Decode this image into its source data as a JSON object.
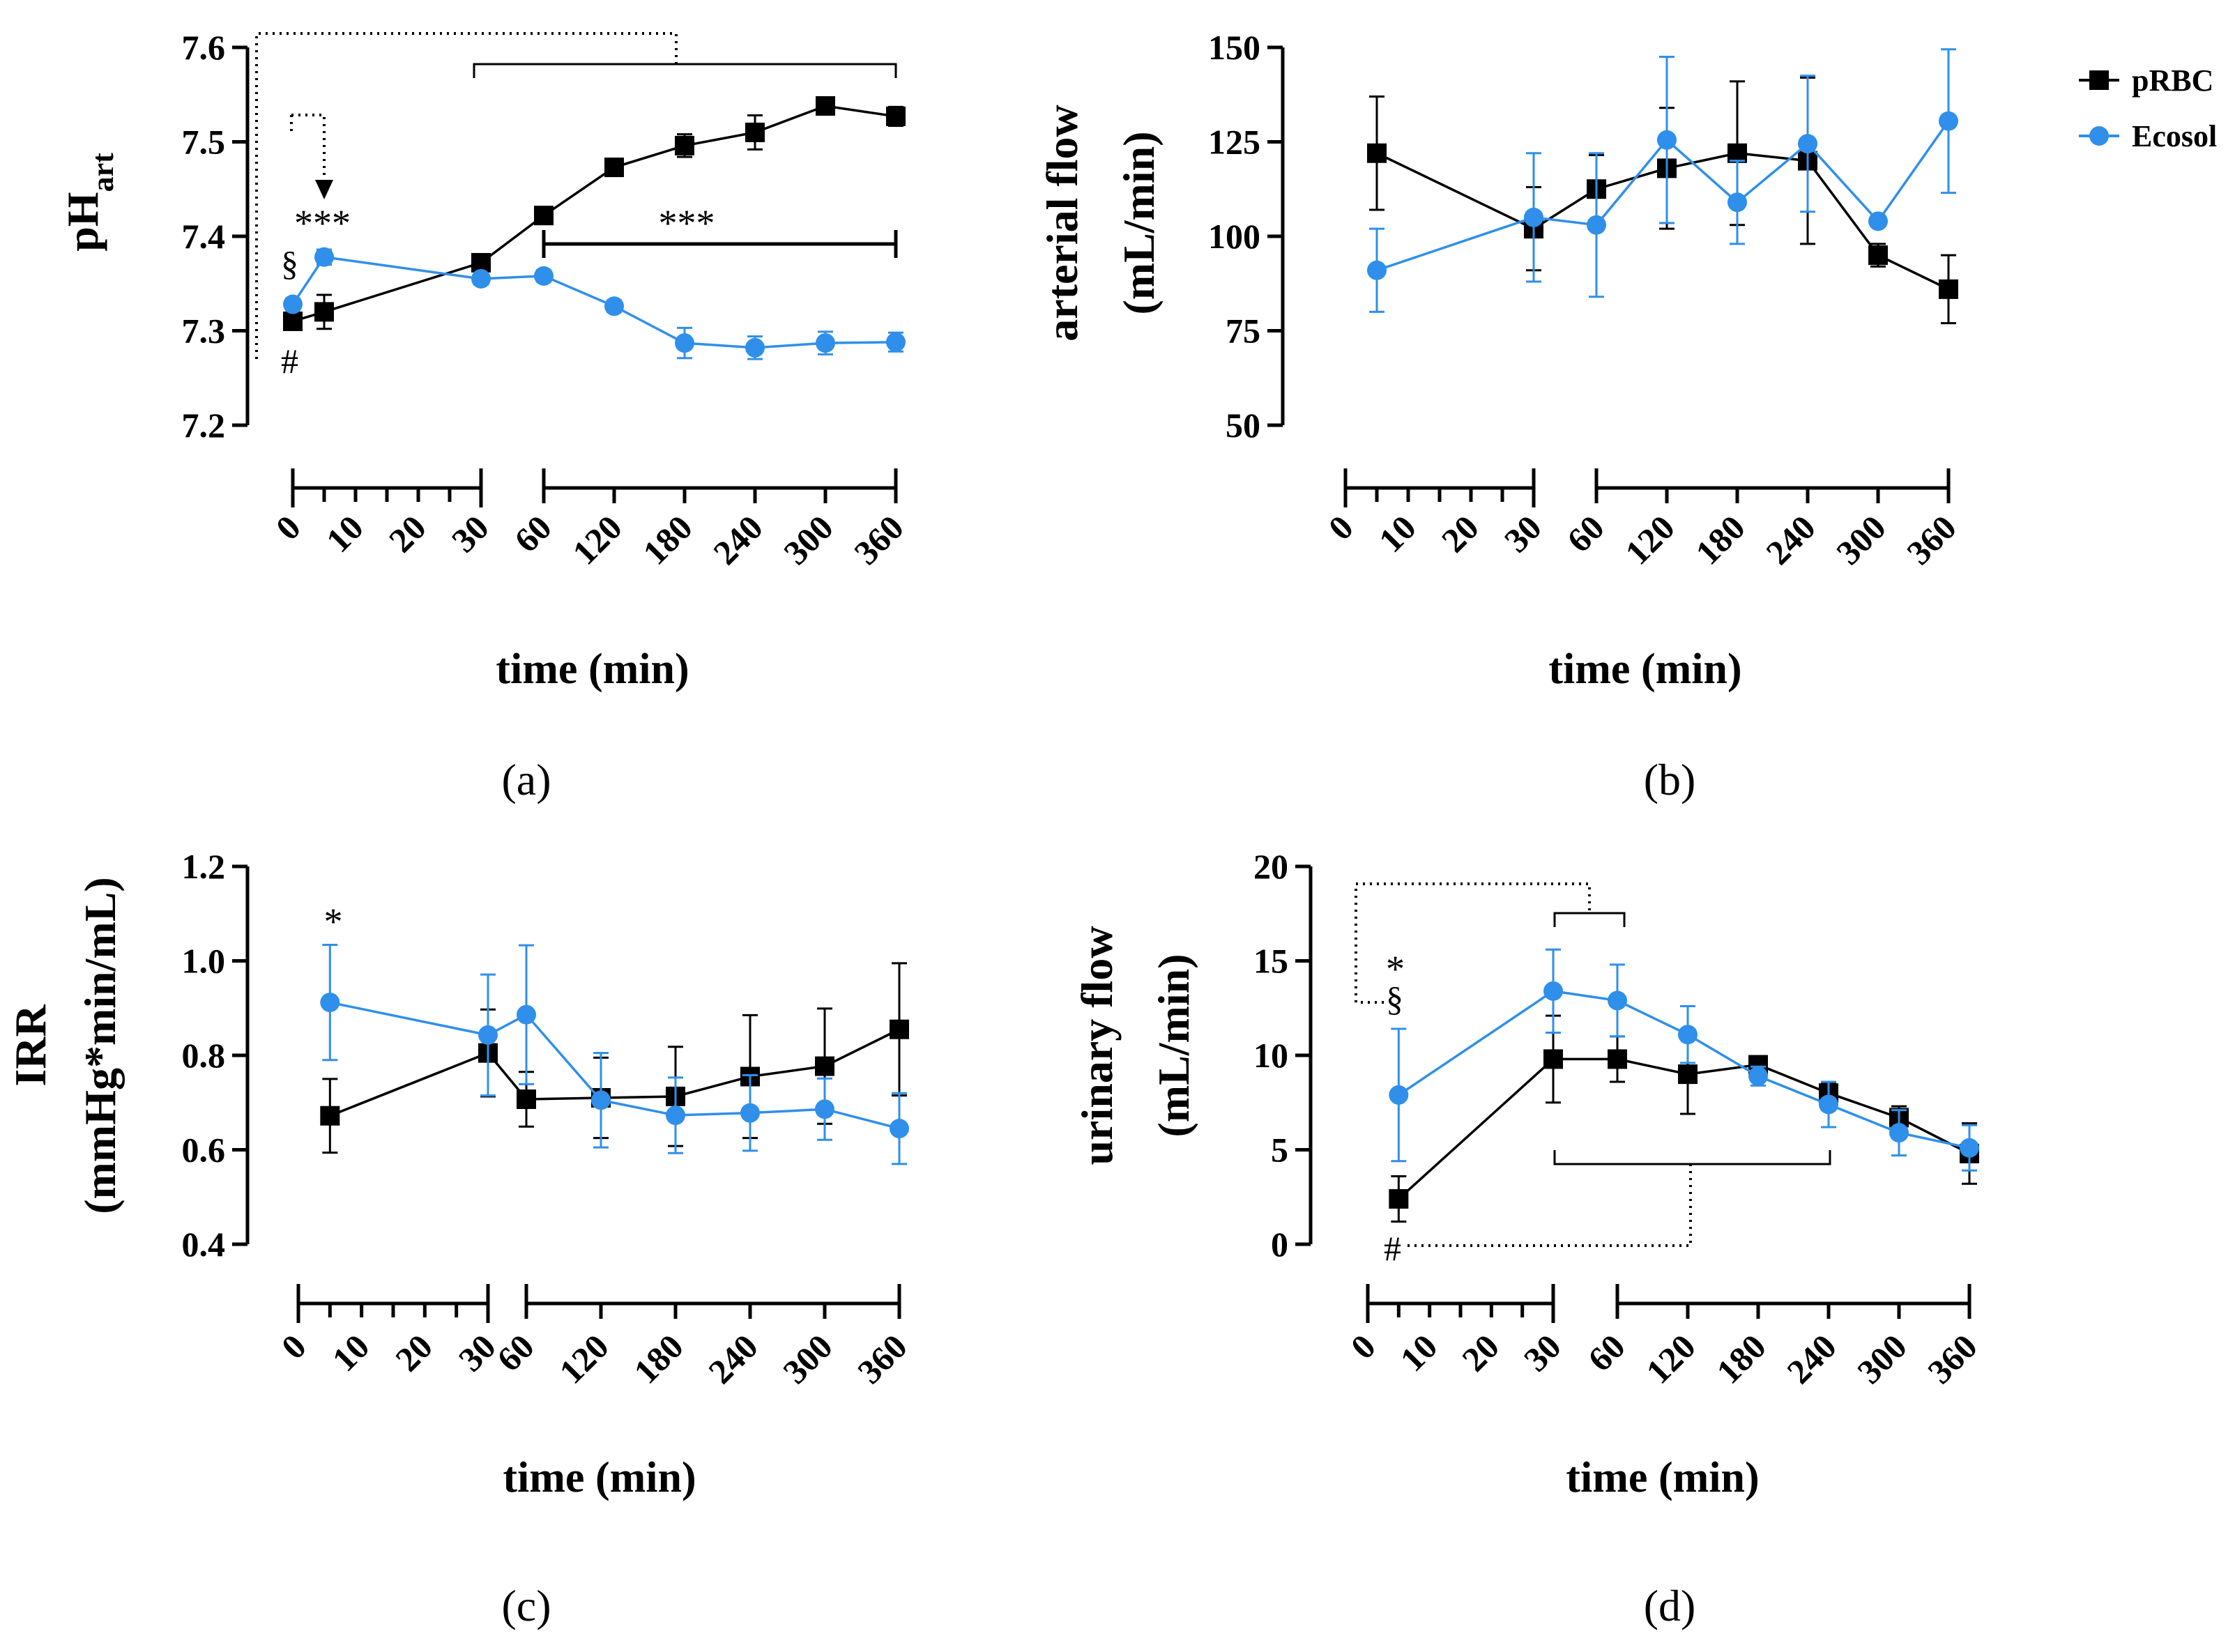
{
  "colors": {
    "prbc": "#000000",
    "ecosol": "#2f8fea"
  },
  "legend": [
    {
      "name": "pRBC",
      "marker": "square"
    },
    {
      "name": "Ecosol",
      "marker": "circle"
    }
  ],
  "chart_data": [
    {
      "panel": "(a)",
      "type": "line",
      "ylabel_main": "pH",
      "ylabel_sub": "art",
      "xlabel": "time (min)",
      "ylim": [
        7.2,
        7.6
      ],
      "yticks": [
        "7.2",
        "7.3",
        "7.4",
        "7.5",
        "7.6"
      ],
      "xticks": [
        "0",
        "10",
        "20",
        "30",
        "60",
        "120",
        "180",
        "240",
        "300",
        "360"
      ],
      "series": [
        {
          "name": "pRBC",
          "x": [
            0,
            5,
            30,
            60,
            120,
            180,
            240,
            300,
            360
          ],
          "y": [
            7.31,
            7.32,
            7.372,
            7.422,
            7.473,
            7.496,
            7.51,
            7.538,
            7.527
          ],
          "err": [
            0.008,
            0.018,
            0.006,
            0.008,
            0.008,
            0.012,
            0.018,
            0.007,
            0.01
          ]
        },
        {
          "name": "Ecosol",
          "x": [
            0,
            5,
            30,
            60,
            120,
            180,
            240,
            300,
            360
          ],
          "y": [
            7.328,
            7.378,
            7.355,
            7.358,
            7.326,
            7.287,
            7.282,
            7.287,
            7.288
          ],
          "err": [
            0.006,
            0.008,
            0.006,
            0.006,
            0.006,
            0.016,
            0.012,
            0.012,
            0.01
          ]
        }
      ],
      "annotations": {
        "stars": "***",
        "stars2": "***",
        "section": "§",
        "hash": "#"
      }
    },
    {
      "panel": "(b)",
      "type": "line",
      "ylabel_line1": "arterial flow",
      "ylabel_line2": "(mL/min)",
      "xlabel": "time (min)",
      "ylim": [
        50,
        150
      ],
      "yticks": [
        "50",
        "75",
        "100",
        "125",
        "150"
      ],
      "xticks": [
        "0",
        "10",
        "20",
        "30",
        "60",
        "120",
        "180",
        "240",
        "300",
        "360"
      ],
      "series": [
        {
          "name": "pRBC",
          "x": [
            5,
            30,
            60,
            120,
            180,
            240,
            300,
            360
          ],
          "y": [
            122,
            102,
            112.5,
            118,
            122,
            120,
            95,
            86
          ],
          "err": [
            15,
            11,
            9,
            16,
            19,
            22,
            3,
            9
          ]
        },
        {
          "name": "Ecosol",
          "x": [
            5,
            30,
            60,
            120,
            180,
            240,
            300,
            360
          ],
          "y": [
            91,
            105,
            103,
            125.5,
            109,
            124.5,
            104,
            130.5
          ],
          "err": [
            11,
            17,
            19,
            22,
            11,
            18,
            1,
            19
          ]
        }
      ]
    },
    {
      "panel": "(c)",
      "type": "line",
      "ylabel_line1": "IRR",
      "ylabel_line2": "(mmHg*min/mL)",
      "xlabel": "time (min)",
      "ylim": [
        0.4,
        1.2
      ],
      "yticks": [
        "0.4",
        "0.6",
        "0.8",
        "1.0",
        "1.2"
      ],
      "xticks": [
        "0",
        "10",
        "20",
        "30",
        "60",
        "120",
        "180",
        "240",
        "300",
        "360"
      ],
      "series": [
        {
          "name": "pRBC",
          "x": [
            5,
            30,
            60,
            120,
            180,
            240,
            300,
            360
          ],
          "y": [
            0.672,
            0.805,
            0.707,
            0.71,
            0.713,
            0.755,
            0.777,
            0.855
          ],
          "err": [
            0.078,
            0.092,
            0.058,
            0.085,
            0.105,
            0.13,
            0.122,
            0.14
          ]
        },
        {
          "name": "Ecosol",
          "x": [
            5,
            30,
            60,
            120,
            180,
            240,
            300,
            360
          ],
          "y": [
            0.912,
            0.843,
            0.886,
            0.705,
            0.673,
            0.678,
            0.686,
            0.645
          ],
          "err": [
            0.122,
            0.128,
            0.147,
            0.1,
            0.08,
            0.08,
            0.065,
            0.075
          ]
        }
      ],
      "annotations": {
        "star": "*"
      }
    },
    {
      "panel": "(d)",
      "type": "line",
      "ylabel_line1": "urinary flow",
      "ylabel_line2": "(mL/min)",
      "xlabel": "time (min)",
      "ylim": [
        0,
        20
      ],
      "yticks": [
        "0",
        "5",
        "10",
        "15",
        "20"
      ],
      "xticks": [
        "0",
        "10",
        "20",
        "30",
        "60",
        "120",
        "180",
        "240",
        "300",
        "360"
      ],
      "series": [
        {
          "name": "pRBC",
          "x": [
            5,
            30,
            60,
            120,
            180,
            240,
            300,
            360
          ],
          "y": [
            2.4,
            9.8,
            9.8,
            9.0,
            9.5,
            8.0,
            6.7,
            4.8
          ],
          "err": [
            1.2,
            2.3,
            1.2,
            2.1,
            0.3,
            0.5,
            0.6,
            1.6
          ]
        },
        {
          "name": "Ecosol",
          "x": [
            5,
            30,
            60,
            120,
            180,
            240,
            300,
            360
          ],
          "y": [
            7.9,
            13.4,
            12.9,
            11.1,
            8.9,
            7.4,
            5.9,
            5.1
          ],
          "err": [
            3.5,
            2.2,
            1.9,
            1.5,
            0.5,
            1.2,
            1.2,
            1.2
          ]
        }
      ],
      "annotations": {
        "star": "*",
        "section": "§",
        "hash": "#"
      }
    }
  ]
}
